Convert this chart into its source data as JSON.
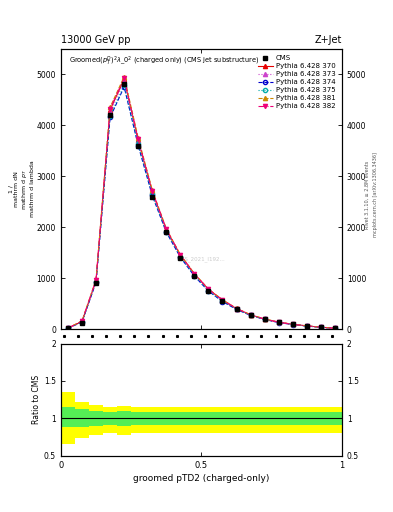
{
  "title_top_left": "13000 GeV pp",
  "title_top_right": "Z+Jet",
  "plot_title": "Groomed$(p_T^D)^2\\lambda\\_0^2$ (charged only) (CMS jet substructure)",
  "xlabel": "groomed pTD2 (charged-only)",
  "ylabel_ratio": "Ratio to CMS",
  "right_label1": "Rivet 3.1.10, ≥ 2.8M events",
  "right_label2": "mcplots.cern.ch [arXiv:1306.3436]",
  "watermark": "CMS_2021_I192...",
  "cms_x": [
    0.025,
    0.075,
    0.125,
    0.175,
    0.225,
    0.275,
    0.325,
    0.375,
    0.425,
    0.475,
    0.525,
    0.575,
    0.625,
    0.675,
    0.725,
    0.775,
    0.825,
    0.875,
    0.925,
    0.975
  ],
  "cms_y": [
    15.0,
    120.0,
    900.0,
    4200.0,
    4800.0,
    3600.0,
    2600.0,
    1900.0,
    1400.0,
    1050.0,
    750.0,
    550.0,
    390.0,
    270.0,
    190.0,
    130.0,
    90.0,
    60.0,
    35.0,
    15.0
  ],
  "py370_y": [
    18.0,
    150.0,
    950.0,
    4300.0,
    4900.0,
    3700.0,
    2700.0,
    1950.0,
    1450.0,
    1080.0,
    780.0,
    570.0,
    400.0,
    280.0,
    195.0,
    135.0,
    93.0,
    62.0,
    37.0,
    16.0
  ],
  "py373_y": [
    16.0,
    145.0,
    940.0,
    4250.0,
    4870.0,
    3680.0,
    2680.0,
    1930.0,
    1430.0,
    1060.0,
    760.0,
    555.0,
    395.0,
    275.0,
    192.0,
    132.0,
    91.0,
    61.0,
    36.0,
    15.5
  ],
  "py374_y": [
    14.0,
    140.0,
    920.0,
    4150.0,
    4750.0,
    3600.0,
    2620.0,
    1900.0,
    1410.0,
    1040.0,
    745.0,
    540.0,
    385.0,
    268.0,
    188.0,
    128.0,
    89.0,
    59.0,
    35.0,
    15.0
  ],
  "py375_y": [
    14.5,
    142.0,
    930.0,
    4180.0,
    4780.0,
    3620.0,
    2640.0,
    1910.0,
    1420.0,
    1050.0,
    750.0,
    545.0,
    388.0,
    270.0,
    190.0,
    130.0,
    90.0,
    60.0,
    36.0,
    15.2
  ],
  "py381_y": [
    19.0,
    160.0,
    970.0,
    4350.0,
    4950.0,
    3750.0,
    2730.0,
    1970.0,
    1460.0,
    1090.0,
    785.0,
    575.0,
    405.0,
    283.0,
    198.0,
    137.0,
    94.0,
    63.0,
    38.0,
    16.5
  ],
  "py382_y": [
    18.5,
    155.0,
    960.0,
    4320.0,
    4920.0,
    3720.0,
    2710.0,
    1960.0,
    1455.0,
    1085.0,
    782.0,
    572.0,
    402.0,
    281.0,
    196.0,
    135.0,
    93.0,
    62.0,
    37.5,
    16.2
  ],
  "ratio_yellow_upper": [
    1.35,
    1.22,
    1.18,
    1.15,
    1.17,
    1.15,
    1.15,
    1.15,
    1.15,
    1.15,
    1.15,
    1.15,
    1.15,
    1.15,
    1.15,
    1.15,
    1.15,
    1.15,
    1.15,
    1.15
  ],
  "ratio_yellow_lower": [
    0.65,
    0.73,
    0.77,
    0.8,
    0.78,
    0.8,
    0.8,
    0.8,
    0.8,
    0.8,
    0.8,
    0.8,
    0.8,
    0.8,
    0.8,
    0.8,
    0.8,
    0.8,
    0.8,
    0.8
  ],
  "ratio_green_upper": [
    1.15,
    1.12,
    1.1,
    1.09,
    1.1,
    1.09,
    1.09,
    1.09,
    1.09,
    1.09,
    1.09,
    1.09,
    1.09,
    1.09,
    1.09,
    1.09,
    1.09,
    1.09,
    1.09,
    1.09
  ],
  "ratio_green_lower": [
    0.88,
    0.88,
    0.9,
    0.91,
    0.9,
    0.91,
    0.91,
    0.91,
    0.91,
    0.91,
    0.91,
    0.91,
    0.91,
    0.91,
    0.91,
    0.91,
    0.91,
    0.91,
    0.91,
    0.91
  ],
  "color_370": "#e60000",
  "color_373": "#cc44cc",
  "color_374": "#0000cc",
  "color_375": "#00aaaa",
  "color_381": "#cc8800",
  "color_382": "#ee0077",
  "yticks_main": [
    0,
    1000,
    2000,
    3000,
    4000,
    5000
  ],
  "ytick_labels_main": [
    "0",
    "1000",
    "2000",
    "3000",
    "4000",
    "5000"
  ],
  "ylim_main": [
    0,
    5500
  ],
  "ylim_ratio": [
    0.5,
    2.0
  ],
  "xlim": [
    0.0,
    1.0
  ],
  "xticks_ratio": [
    0,
    0.5,
    1.0
  ],
  "xtick_labels_ratio": [
    "0",
    "0.5",
    "1"
  ],
  "yticks_ratio": [
    0.5,
    1.0,
    1.5,
    2.0
  ],
  "ytick_labels_ratio": [
    "0.5",
    "1",
    "1.5",
    "2"
  ]
}
